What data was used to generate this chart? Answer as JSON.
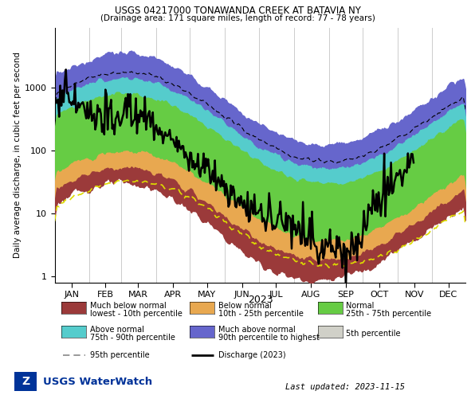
{
  "title1": "USGS 04217000 TONAWANDA CREEK AT BATAVIA NY",
  "title2": "(Drainage area: 171 square miles, length of record: 77 - 78 years)",
  "xlabel": "2023",
  "ylabel": "Daily average discharge, in cubic feet per second",
  "months": [
    "JAN",
    "FEB",
    "MAR",
    "APR",
    "MAY",
    "JUN",
    "JUL",
    "AUG",
    "SEP",
    "OCT",
    "NOV",
    "DEC"
  ],
  "colors": {
    "p10_fill": "#9B3A3A",
    "p25_fill": "#E8A850",
    "p75_fill": "#66CC44",
    "p90_fill": "#55CCCC",
    "p100_fill": "#6666CC",
    "p5_line": "#DDDD00",
    "p95_line": "#AAAAAA",
    "discharge": "#000000",
    "background": "#FFFFFF",
    "grid": "#CCCCCC"
  },
  "last_updated": "Last updated: 2023-11-15"
}
